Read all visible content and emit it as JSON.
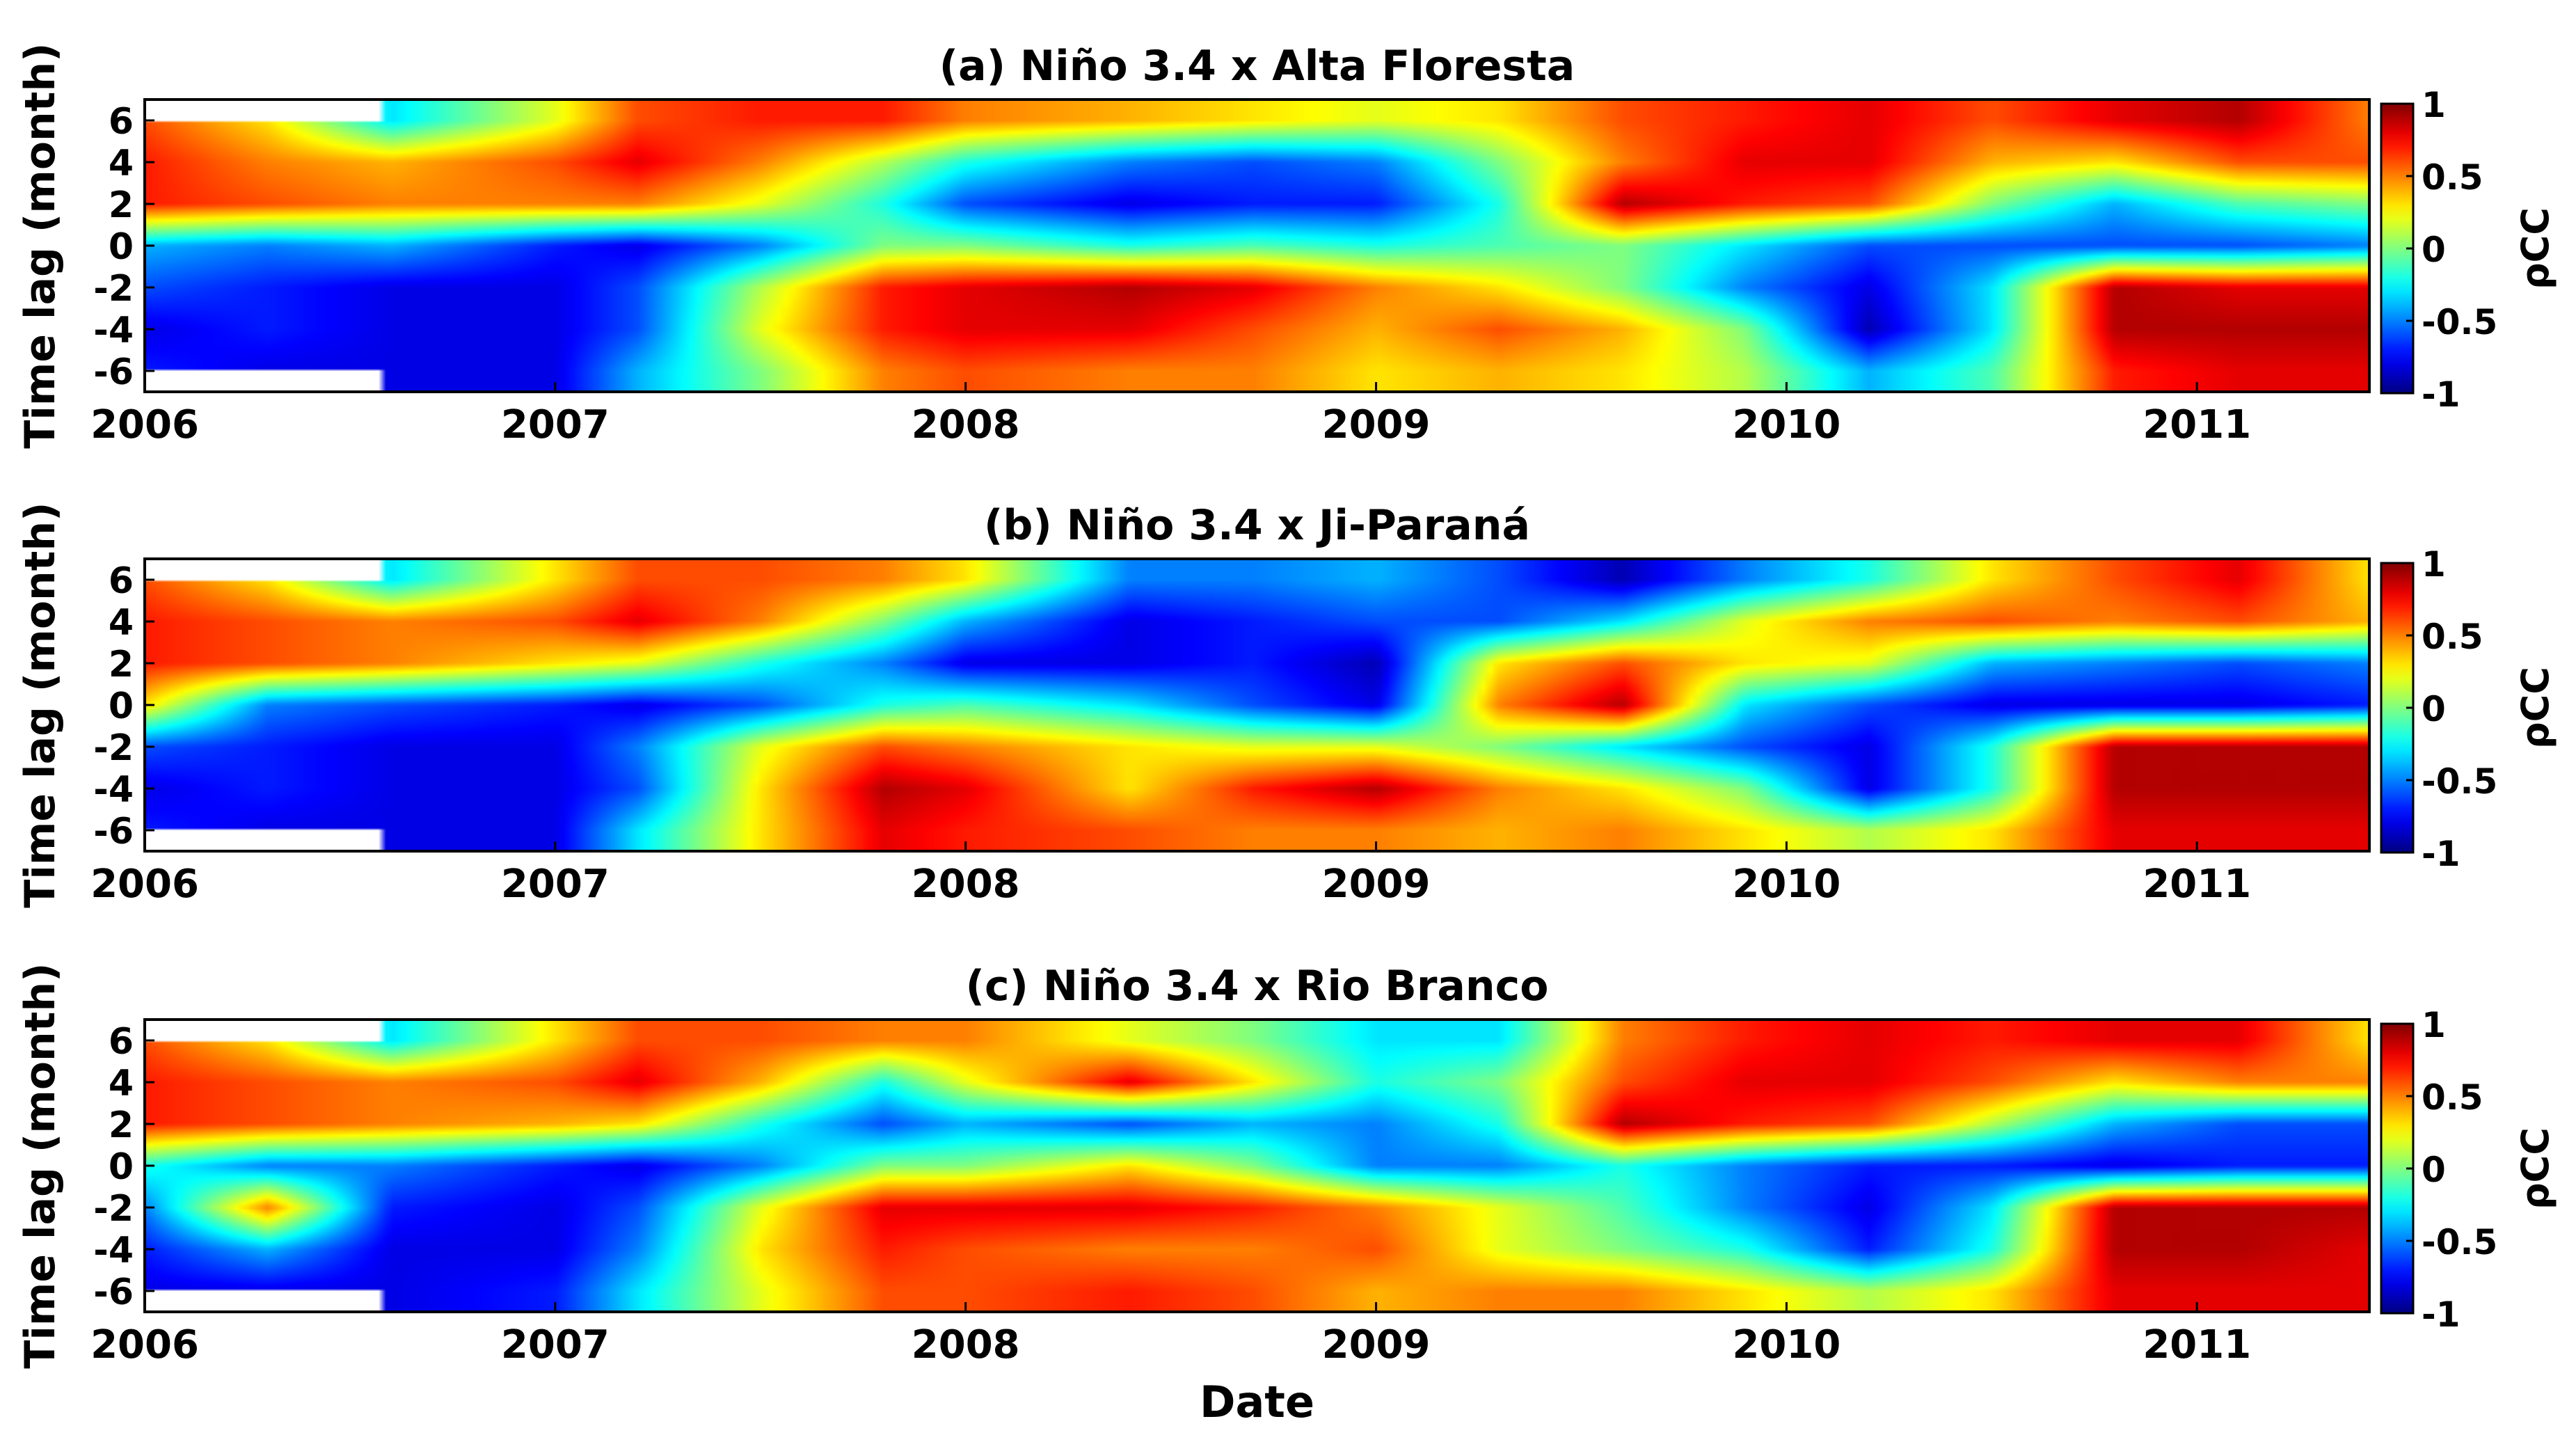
{
  "figure": {
    "shared_xlabel": "Date"
  },
  "colormap": "jet",
  "colors": {
    "missing": "#ffffff",
    "frame": "#000000",
    "background": "#ffffff"
  },
  "chart_data": [
    {
      "type": "heatmap",
      "title": "(a) Niño 3.4 x Alta Floresta",
      "xlabel": "",
      "ylabel": "Time lag (month)",
      "x_ticks": [
        "2006",
        "2007",
        "2008",
        "2009",
        "2010",
        "2011"
      ],
      "x_range": [
        2006.0,
        2011.42
      ],
      "y_ticks": [
        6,
        4,
        2,
        0,
        -2,
        -4,
        -6
      ],
      "y_range": [
        -7,
        7
      ],
      "colorbar": {
        "label": "ρCC",
        "ticks": [
          1,
          0.5,
          0,
          -0.5,
          -1
        ],
        "range": [
          -1,
          1
        ]
      },
      "missing_until": 2006.58,
      "x_knots": [
        2006.0,
        2006.3,
        2006.6,
        2007.0,
        2007.2,
        2007.5,
        2007.8,
        2008.0,
        2008.4,
        2008.7,
        2009.0,
        2009.3,
        2009.6,
        2009.9,
        2010.2,
        2010.5,
        2010.8,
        2011.1,
        2011.42
      ],
      "lag_knots": [
        6,
        4,
        2,
        0,
        -2,
        -4,
        -6
      ],
      "values": [
        [
          0.6,
          0.3,
          -0.3,
          0.2,
          0.6,
          0.7,
          0.7,
          0.5,
          0.4,
          0.3,
          0.2,
          0.3,
          0.6,
          0.7,
          0.8,
          0.6,
          0.8,
          0.9,
          0.5
        ],
        [
          0.7,
          0.5,
          0.4,
          0.6,
          0.8,
          0.5,
          0.1,
          -0.2,
          -0.5,
          -0.6,
          -0.5,
          0.0,
          0.5,
          0.8,
          0.8,
          0.4,
          0.3,
          0.6,
          0.6
        ],
        [
          0.7,
          0.6,
          0.5,
          0.5,
          0.5,
          0.2,
          -0.2,
          -0.6,
          -0.8,
          -0.7,
          -0.7,
          -0.2,
          0.9,
          0.7,
          0.6,
          0.0,
          -0.4,
          -0.1,
          0.0
        ],
        [
          -0.4,
          -0.5,
          -0.4,
          -0.7,
          -0.8,
          -0.5,
          0.0,
          0.0,
          -0.2,
          -0.1,
          -0.2,
          -0.1,
          0.0,
          -0.3,
          -0.6,
          -0.6,
          -0.6,
          -0.6,
          -0.5
        ],
        [
          -0.6,
          -0.7,
          -0.8,
          -0.8,
          -0.6,
          0.1,
          0.7,
          0.8,
          0.9,
          0.8,
          0.5,
          0.3,
          0.0,
          -0.5,
          -0.8,
          -0.3,
          0.9,
          0.8,
          0.8
        ],
        [
          -0.8,
          -0.7,
          -0.8,
          -0.8,
          -0.6,
          0.2,
          0.7,
          0.8,
          0.8,
          0.6,
          0.4,
          0.6,
          0.4,
          0.0,
          -0.9,
          -0.3,
          0.9,
          0.9,
          0.9
        ],
        [
          -0.7,
          -0.8,
          -0.8,
          -0.8,
          -0.4,
          0.0,
          0.5,
          0.6,
          0.5,
          0.5,
          0.3,
          0.4,
          0.3,
          0.1,
          -0.4,
          -0.1,
          0.7,
          0.8,
          0.8
        ]
      ]
    },
    {
      "type": "heatmap",
      "title": "(b) Niño 3.4 x Ji-Paraná",
      "xlabel": "",
      "ylabel": "Time lag (month)",
      "x_ticks": [
        "2006",
        "2007",
        "2008",
        "2009",
        "2010",
        "2011"
      ],
      "x_range": [
        2006.0,
        2011.42
      ],
      "y_ticks": [
        6,
        4,
        2,
        0,
        -2,
        -4,
        -6
      ],
      "y_range": [
        -7,
        7
      ],
      "colorbar": {
        "label": "ρCC",
        "ticks": [
          1,
          0.5,
          0,
          -0.5,
          -1
        ],
        "range": [
          -1,
          1
        ]
      },
      "missing_until": 2006.58,
      "x_knots": [
        2006.0,
        2006.3,
        2006.6,
        2007.0,
        2007.2,
        2007.5,
        2007.8,
        2008.0,
        2008.4,
        2008.7,
        2009.0,
        2009.3,
        2009.6,
        2009.9,
        2010.2,
        2010.5,
        2010.8,
        2011.1,
        2011.42
      ],
      "lag_knots": [
        6,
        4,
        2,
        0,
        -2,
        -4,
        -6
      ],
      "values": [
        [
          0.6,
          0.3,
          -0.3,
          0.3,
          0.6,
          0.6,
          0.5,
          0.3,
          -0.5,
          -0.5,
          -0.4,
          -0.6,
          -0.9,
          -0.5,
          -0.2,
          0.3,
          0.6,
          0.8,
          0.3
        ],
        [
          0.7,
          0.6,
          0.5,
          0.6,
          0.8,
          0.5,
          0.0,
          -0.4,
          -0.8,
          -0.7,
          -0.6,
          -0.6,
          -0.3,
          0.2,
          0.5,
          0.6,
          0.5,
          0.6,
          0.4
        ],
        [
          0.7,
          0.6,
          0.5,
          0.3,
          0.2,
          -0.2,
          -0.5,
          -0.8,
          -0.8,
          -0.7,
          -0.9,
          0.3,
          0.6,
          0.3,
          0.2,
          -0.4,
          -0.5,
          -0.6,
          -0.5
        ],
        [
          0.3,
          -0.5,
          -0.6,
          -0.7,
          -0.8,
          -0.6,
          -0.2,
          -0.1,
          -0.3,
          -0.6,
          -0.8,
          0.5,
          0.9,
          -0.3,
          -0.6,
          -0.8,
          -0.8,
          -0.8,
          -0.7
        ],
        [
          -0.6,
          -0.7,
          -0.8,
          -0.8,
          -0.5,
          0.2,
          0.6,
          0.5,
          0.3,
          0.2,
          0.2,
          0.0,
          -0.3,
          -0.6,
          -0.8,
          -0.2,
          0.9,
          0.9,
          0.9
        ],
        [
          -0.8,
          -0.7,
          -0.8,
          -0.8,
          -0.6,
          0.3,
          0.9,
          0.8,
          0.3,
          0.7,
          0.9,
          0.5,
          0.3,
          0.0,
          -0.8,
          -0.2,
          0.9,
          0.9,
          0.9
        ],
        [
          -0.7,
          -0.8,
          -0.8,
          -0.8,
          -0.3,
          0.3,
          0.8,
          0.7,
          0.6,
          0.5,
          0.5,
          0.4,
          0.5,
          0.3,
          0.1,
          0.3,
          0.8,
          0.8,
          0.8
        ]
      ]
    },
    {
      "type": "heatmap",
      "title": "(c) Niño 3.4 x Rio Branco",
      "xlabel": "Date",
      "ylabel": "Time lag (month)",
      "x_ticks": [
        "2006",
        "2007",
        "2008",
        "2009",
        "2010",
        "2011"
      ],
      "x_range": [
        2006.0,
        2011.42
      ],
      "y_ticks": [
        6,
        4,
        2,
        0,
        -2,
        -4,
        -6
      ],
      "y_range": [
        -7,
        7
      ],
      "colorbar": {
        "label": "ρCC",
        "ticks": [
          1,
          0.5,
          0,
          -0.5,
          -1
        ],
        "range": [
          -1,
          1
        ]
      },
      "missing_until": 2006.58,
      "x_knots": [
        2006.0,
        2006.3,
        2006.6,
        2007.0,
        2007.2,
        2007.5,
        2007.8,
        2008.0,
        2008.4,
        2008.7,
        2009.0,
        2009.3,
        2009.6,
        2009.9,
        2010.2,
        2010.5,
        2010.8,
        2011.1,
        2011.42
      ],
      "lag_knots": [
        6,
        4,
        2,
        0,
        -2,
        -4,
        -6
      ],
      "values": [
        [
          0.6,
          0.3,
          -0.3,
          0.3,
          0.6,
          0.6,
          0.5,
          0.5,
          0.2,
          0.0,
          -0.3,
          -0.3,
          0.5,
          0.7,
          0.8,
          0.7,
          0.8,
          0.8,
          0.3
        ],
        [
          0.7,
          0.6,
          0.5,
          0.6,
          0.8,
          0.4,
          -0.2,
          0.2,
          0.8,
          0.3,
          -0.2,
          0.0,
          0.6,
          0.8,
          0.8,
          0.6,
          0.3,
          0.5,
          0.5
        ],
        [
          0.7,
          0.6,
          0.5,
          0.4,
          0.3,
          -0.2,
          -0.6,
          -0.4,
          -0.6,
          -0.4,
          -0.5,
          -0.2,
          0.9,
          0.7,
          0.6,
          0.1,
          -0.4,
          -0.6,
          -0.6
        ],
        [
          -0.2,
          -0.5,
          -0.5,
          -0.7,
          -0.8,
          -0.5,
          0.0,
          0.0,
          0.3,
          0.0,
          -0.5,
          -0.5,
          -0.2,
          -0.5,
          -0.7,
          -0.7,
          -0.8,
          -0.7,
          -0.7
        ],
        [
          -0.5,
          0.5,
          -0.7,
          -0.8,
          -0.6,
          0.2,
          0.8,
          0.8,
          0.8,
          0.7,
          0.5,
          0.2,
          -0.1,
          -0.5,
          -0.8,
          -0.3,
          0.9,
          0.9,
          0.9
        ],
        [
          -0.7,
          -0.4,
          -0.8,
          -0.8,
          -0.5,
          0.3,
          0.7,
          0.6,
          0.5,
          0.5,
          0.6,
          0.2,
          0.0,
          -0.2,
          -0.7,
          -0.2,
          0.9,
          0.9,
          0.8
        ],
        [
          -0.8,
          -0.8,
          -0.8,
          -0.7,
          -0.3,
          0.2,
          0.6,
          0.6,
          0.7,
          0.6,
          0.4,
          0.5,
          0.5,
          0.3,
          0.1,
          0.3,
          0.8,
          0.8,
          0.8
        ]
      ]
    }
  ]
}
